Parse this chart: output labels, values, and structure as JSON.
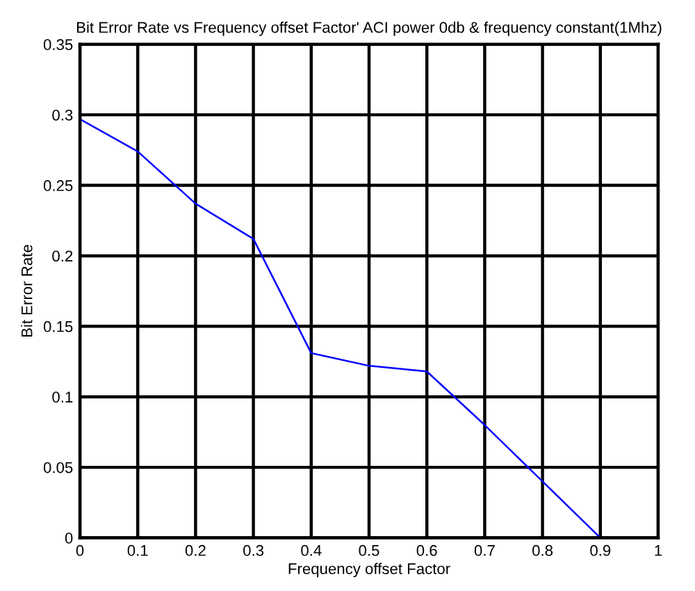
{
  "chart_data": {
    "type": "line",
    "title": "Bit Error Rate vs Frequency offset Factor' ACI power 0db & frequency constant(1Mhz)",
    "xlabel": "Frequency offset Factor",
    "ylabel": "Bit Error Rate",
    "x": [
      0,
      0.1,
      0.2,
      0.3,
      0.4,
      0.5,
      0.6,
      0.7,
      0.8,
      0.9,
      1
    ],
    "series": [
      {
        "color": "#0000ff",
        "values": [
          0.297,
          0.274,
          0.237,
          0.212,
          0.131,
          0.122,
          0.118,
          0.08,
          0.04,
          0,
          0
        ]
      }
    ],
    "xlim": [
      0,
      1
    ],
    "ylim": [
      0,
      0.35
    ],
    "xticks": [
      0,
      0.1,
      0.2,
      0.3,
      0.4,
      0.5,
      0.6,
      0.7,
      0.8,
      0.9,
      1
    ],
    "yticks": [
      0,
      0.05,
      0.1,
      0.15,
      0.2,
      0.25,
      0.3,
      0.35
    ],
    "grid": true,
    "marker": "none",
    "line_style": "solid",
    "legend": false
  }
}
